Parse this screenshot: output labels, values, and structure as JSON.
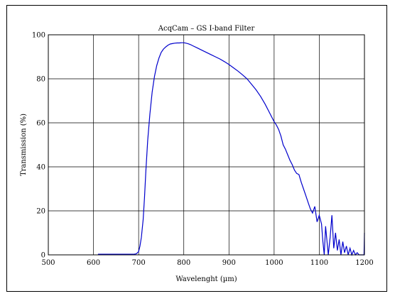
{
  "chart_data": {
    "type": "line",
    "title": "AcqCam – GS I-band Filter",
    "xlabel": "Wavelenght (µm)",
    "ylabel": "Transmission (%)",
    "xlim": [
      500,
      1200
    ],
    "ylim": [
      0,
      100
    ],
    "xticks": [
      500,
      600,
      700,
      800,
      900,
      1000,
      1100,
      1200
    ],
    "yticks": [
      0,
      20,
      40,
      60,
      80,
      100
    ],
    "grid": true,
    "line_color": "#0000cc",
    "series": [
      {
        "x": [
          610,
          650,
          690,
          695,
          700,
          703,
          706,
          710,
          713,
          716,
          720,
          725,
          730,
          735,
          740,
          745,
          750,
          755,
          760,
          765,
          770,
          775,
          780,
          785,
          790,
          795,
          800,
          805,
          810,
          815,
          820,
          830,
          840,
          850,
          860,
          870,
          880,
          890,
          900,
          910,
          920,
          930,
          940,
          950,
          960,
          970,
          980,
          990,
          1000,
          1005,
          1010,
          1015,
          1020,
          1025,
          1030,
          1035,
          1040,
          1045,
          1050,
          1055,
          1060,
          1065,
          1070,
          1075,
          1080,
          1085,
          1090,
          1095,
          1100,
          1105,
          1108,
          1111,
          1114,
          1118,
          1120,
          1124,
          1128,
          1132,
          1136,
          1140,
          1144,
          1148,
          1152,
          1156,
          1160,
          1164,
          1168,
          1172,
          1176,
          1180,
          1184,
          1188,
          1192,
          1196,
          1199,
          1200
        ],
        "y": [
          0.3,
          0.3,
          0.3,
          0.5,
          1.5,
          4,
          8,
          16,
          26,
          38,
          52,
          64,
          74,
          81,
          86,
          89.5,
          92,
          93.5,
          94.5,
          95.3,
          95.8,
          96,
          96.2,
          96.3,
          96.3,
          96.4,
          96.4,
          96.2,
          95.9,
          95.5,
          95,
          94,
          93,
          92,
          91,
          90,
          89,
          87.8,
          86.5,
          85,
          83.5,
          81.8,
          80,
          77.5,
          75,
          72,
          68.5,
          64.5,
          60.5,
          59,
          57,
          54,
          50,
          48,
          45.5,
          43,
          41,
          38.5,
          37,
          36.5,
          33,
          30,
          27,
          24,
          21,
          19,
          22,
          15,
          18,
          14,
          6,
          0,
          13,
          4,
          0,
          8,
          18,
          3,
          10,
          2,
          7,
          0,
          6,
          1,
          4,
          0,
          3,
          0,
          2,
          0,
          1,
          0,
          0,
          0,
          0,
          10
        ]
      }
    ]
  }
}
